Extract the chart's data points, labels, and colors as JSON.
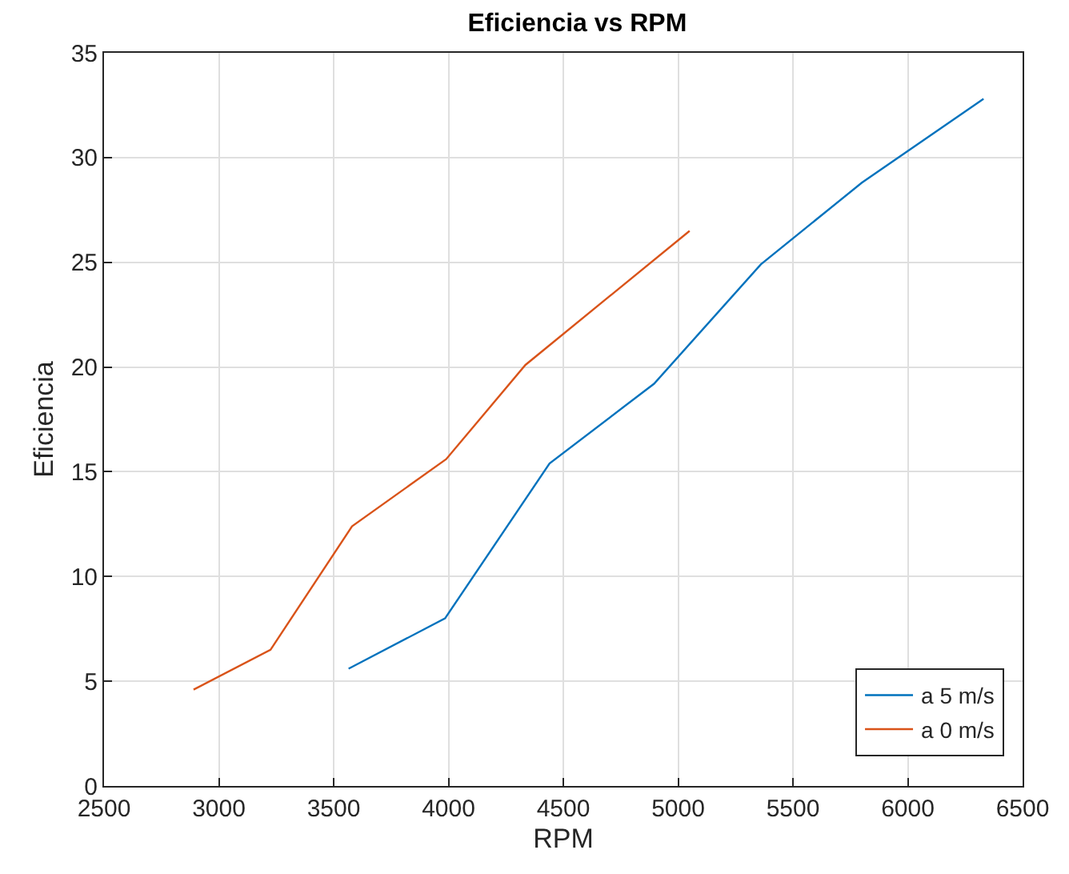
{
  "chart_data": {
    "type": "line",
    "title": "Eficiencia vs RPM",
    "xlabel": "RPM",
    "ylabel": "Eficiencia",
    "series": [
      {
        "name": "a 5 m/s",
        "color": "#0072bd",
        "x": [
          3565,
          3985,
          4440,
          4895,
          5360,
          5800,
          6330
        ],
        "values": [
          5.6,
          8.0,
          15.4,
          19.2,
          24.9,
          28.8,
          32.8
        ]
      },
      {
        "name": "a 0 m/s",
        "color": "#d95319",
        "x": [
          2890,
          3225,
          3580,
          3990,
          4335,
          5050
        ],
        "values": [
          4.6,
          6.5,
          12.4,
          15.6,
          20.1,
          26.5
        ]
      }
    ],
    "xlim": [
      2500,
      6500
    ],
    "xticks": [
      2500,
      3000,
      3500,
      4000,
      4500,
      5000,
      5500,
      6000,
      6500
    ],
    "ylim": [
      0,
      35
    ],
    "yticks": [
      0,
      5,
      10,
      15,
      20,
      25,
      30,
      35
    ],
    "grid": true,
    "legend": "bottom right",
    "marker": "none",
    "line_style": "solid"
  }
}
